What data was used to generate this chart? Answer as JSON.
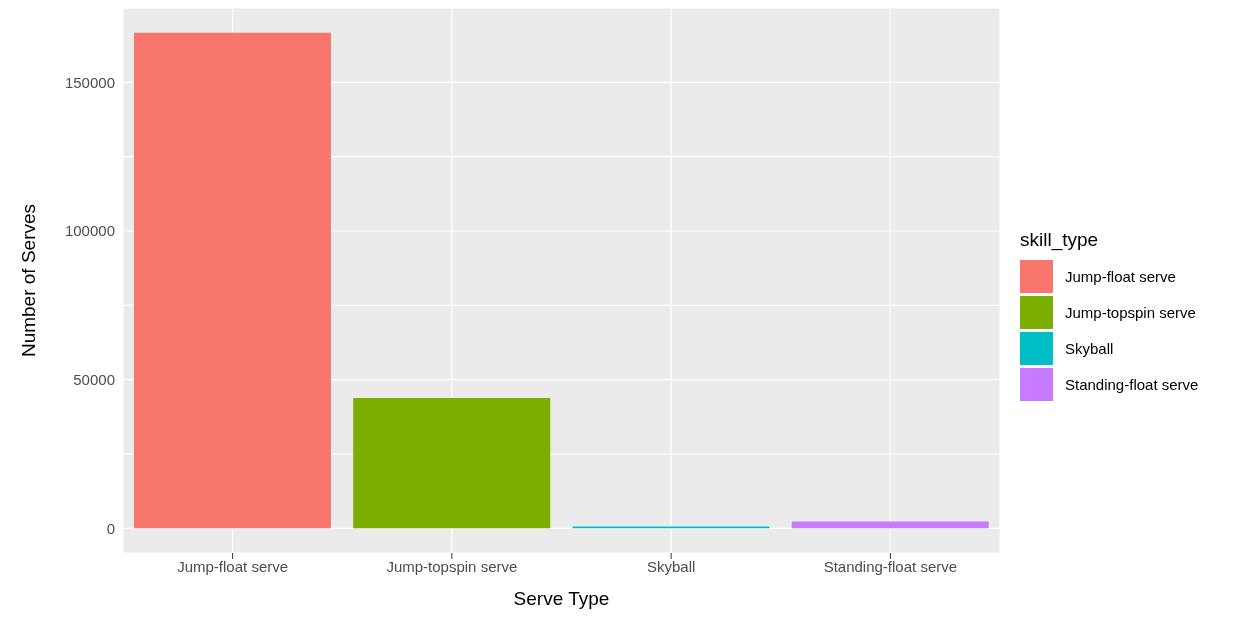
{
  "chart_data": {
    "type": "bar",
    "xlabel": "Serve Type",
    "ylabel": "Number of Serves",
    "legend_title": "skill_type",
    "categories": [
      "Jump-float serve",
      "Jump-topspin serve",
      "Skyball",
      "Standing-float serve"
    ],
    "series": [
      {
        "name": "Jump-float serve",
        "color": "#f8766d",
        "values": [
          166700,
          null,
          null,
          null
        ]
      },
      {
        "name": "Jump-topspin serve",
        "color": "#7cae00",
        "values": [
          null,
          43800,
          null,
          null
        ]
      },
      {
        "name": "Skyball",
        "color": "#00bfc4",
        "values": [
          null,
          null,
          600,
          null
        ]
      },
      {
        "name": "Standing-float serve",
        "color": "#c77cff",
        "values": [
          null,
          null,
          null,
          2300
        ]
      }
    ],
    "stacked": true,
    "ylim": [
      -8300,
      175000
    ],
    "yticks": [
      0,
      {
        "value": 25000,
        "label": null
      },
      50000,
      {
        "value": 75000,
        "label": null
      },
      100000,
      {
        "value": 125000,
        "label": null
      },
      150000
    ],
    "grid": true,
    "legend": "right"
  }
}
